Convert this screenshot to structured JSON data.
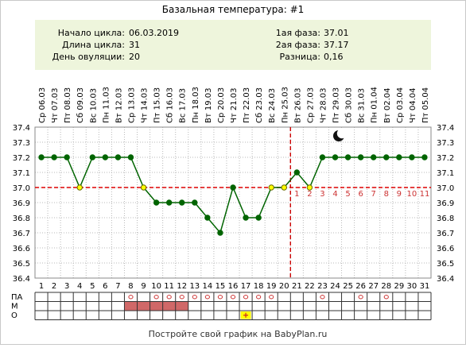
{
  "chart_data": {
    "type": "line",
    "title": "Базальная температура: #1",
    "info": {
      "left": [
        {
          "label": "Начало цикла:",
          "value": "06.03.2019"
        },
        {
          "label": "Длина цикла:",
          "value": "31"
        },
        {
          "label": "День овуляции:",
          "value": "20"
        }
      ],
      "right": [
        {
          "label": "1ая фаза:",
          "value": "37.01"
        },
        {
          "label": "2ая фаза:",
          "value": "37.17"
        },
        {
          "label": "Разница:",
          "value": "0,16"
        }
      ]
    },
    "dates": [
      "Ср 06.03",
      "Чт 07.03",
      "Пт 08.03",
      "Сб 09.03",
      "Вс 10.03",
      "Пн 11.03",
      "Вт 12.03",
      "Ср 13.03",
      "Чт 14.03",
      "Пт 15.03",
      "Сб 16.03",
      "Вс 17.03",
      "Пн 18.03",
      "Вт 19.03",
      "Ср 20.03",
      "Чт 21.03",
      "Пт 22.03",
      "Сб 23.03",
      "Вс 24.03",
      "Пн 25.03",
      "Вт 26.03",
      "Ср 27.03",
      "Чт 28.03",
      "Пт 29.03",
      "Сб 30.03",
      "Вс 31.03",
      "Пн 01.04",
      "Вт 02.04",
      "Ср 03.04",
      "Чт 04.04",
      "Пт 05.04"
    ],
    "x": [
      1,
      2,
      3,
      4,
      5,
      6,
      7,
      8,
      9,
      10,
      11,
      12,
      13,
      14,
      15,
      16,
      17,
      18,
      19,
      20,
      21,
      22,
      23,
      24,
      25,
      26,
      27,
      28,
      29,
      30,
      31
    ],
    "x_labels": [
      "1",
      "2",
      "3",
      "4",
      "5",
      "6",
      "7",
      "8",
      "9",
      "10",
      "11",
      "12",
      "13",
      "14",
      "15",
      "16",
      "17",
      "18",
      "19",
      "20",
      "21",
      "22",
      "23",
      "24",
      "25",
      "26",
      "27",
      "28",
      "29",
      "30",
      "31"
    ],
    "series": [
      {
        "values": [
          37.2,
          37.2,
          37.2,
          37.0,
          37.2,
          37.2,
          37.2,
          37.2,
          37.0,
          36.9,
          36.9,
          36.9,
          36.9,
          36.8,
          36.7,
          37.0,
          36.8,
          36.8,
          37.0,
          37.0,
          37.1,
          37.0,
          37.2,
          37.2,
          37.2,
          37.2,
          37.2,
          37.2,
          37.2,
          37.2,
          37.2
        ]
      }
    ],
    "hollow_points": [
      4,
      9,
      19,
      20,
      22
    ],
    "ylim": [
      36.4,
      37.4
    ],
    "y_ticks": [
      "36.4",
      "36.5",
      "36.6",
      "36.7",
      "36.8",
      "36.9",
      "37.0",
      "37.1",
      "37.2",
      "37.3",
      "37.4"
    ],
    "coverline": 37.0,
    "ovulation_day": 20,
    "luteal_day_labels": [
      "1",
      "2",
      "3",
      "4",
      "5",
      "6",
      "7",
      "8",
      "9",
      "10",
      "11"
    ],
    "grid": true,
    "icon": "moon-icon",
    "rows": {
      "labels": [
        "ПА",
        "М",
        "О"
      ],
      "pa_marks": [
        8,
        10,
        11,
        12,
        13,
        14,
        15,
        16,
        17,
        18,
        19,
        23,
        26,
        28
      ],
      "m_marks": [
        8,
        9,
        10,
        11,
        12
      ],
      "o_marks": [
        17
      ]
    },
    "footer": "Постройте свой график на BabyPlan.ru",
    "colors": {
      "line": "#006400",
      "point": "#006400",
      "coverline": "#dd0000",
      "ovulation": "#cc0000",
      "luteal_labels": "#cc3333",
      "grid": "#b8b8b8",
      "info_bg": "#eef5dc",
      "menses": "#d06868",
      "marker_o": "#cc3333",
      "marker_plus_bg": "#ffff00",
      "marker_plus": "#cc2222"
    }
  }
}
